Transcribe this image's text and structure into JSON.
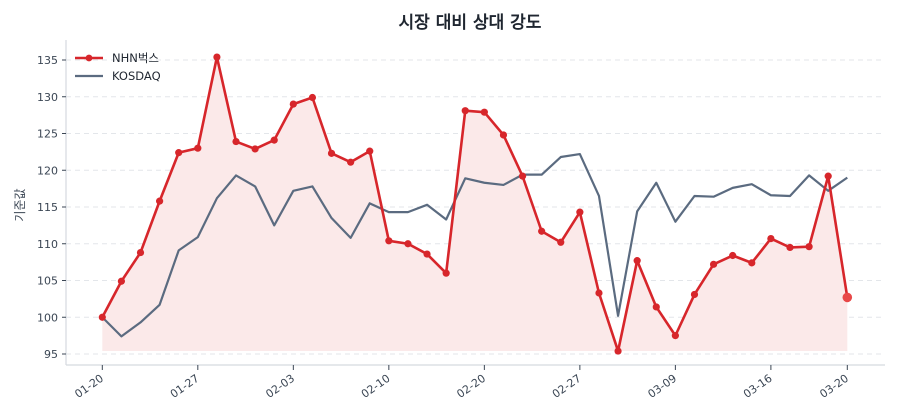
{
  "chart_data": {
    "type": "line",
    "title": "시장 대비 상대 강도",
    "xlabel": "",
    "ylabel": "기준값",
    "ylim": [
      93.5,
      137.5
    ],
    "yticks": [
      95,
      100,
      105,
      110,
      115,
      120,
      125,
      130,
      135
    ],
    "x": [
      "01-20",
      "01-21",
      "01-22",
      "01-23",
      "01-24",
      "01-27",
      "01-28",
      "01-29",
      "01-30",
      "01-31",
      "02-03",
      "02-04",
      "02-05",
      "02-06",
      "02-07",
      "02-10",
      "02-11",
      "02-12",
      "02-13",
      "02-14",
      "02-20",
      "02-21",
      "02-24",
      "02-25",
      "02-26",
      "02-27",
      "02-28",
      "03-04",
      "03-05",
      "03-06",
      "03-09",
      "03-10",
      "03-11",
      "03-12",
      "03-13",
      "03-16",
      "03-17",
      "03-18",
      "03-19",
      "03-20"
    ],
    "xticks": [
      {
        "index": 0,
        "label": "01-20"
      },
      {
        "index": 5,
        "label": "01-27"
      },
      {
        "index": 10,
        "label": "02-03"
      },
      {
        "index": 15,
        "label": "02-10"
      },
      {
        "index": 20,
        "label": "02-20"
      },
      {
        "index": 25,
        "label": "02-27"
      },
      {
        "index": 30,
        "label": "03-09"
      },
      {
        "index": 35,
        "label": "03-16"
      },
      {
        "index": 39,
        "label": "03-20"
      }
    ],
    "grid": "y-dashed",
    "legend_position": "upper-left",
    "series": [
      {
        "name": "NHN벅스",
        "color": "#d7262b",
        "marker": "circle",
        "fill": true,
        "fill_color": "#fbe9e9",
        "values": [
          100.0,
          104.9,
          108.8,
          115.8,
          122.4,
          123.0,
          135.4,
          123.9,
          122.9,
          124.1,
          129.0,
          129.9,
          122.3,
          121.1,
          122.6,
          110.4,
          110.0,
          108.6,
          106.0,
          128.1,
          127.9,
          124.8,
          119.2,
          111.7,
          110.2,
          114.3,
          103.3,
          95.4,
          107.7,
          101.4,
          97.5,
          103.1,
          107.2,
          108.4,
          107.4,
          110.7,
          109.5,
          109.6,
          119.2,
          102.7
        ]
      },
      {
        "name": "KOSDAQ",
        "color": "#5b6b80",
        "marker": "none",
        "fill": false,
        "values": [
          100.0,
          97.4,
          99.3,
          101.7,
          109.1,
          110.9,
          116.2,
          119.3,
          117.8,
          112.5,
          117.2,
          117.8,
          113.5,
          110.8,
          115.5,
          114.3,
          114.3,
          115.3,
          113.3,
          118.9,
          118.3,
          118.0,
          119.4,
          119.4,
          121.8,
          122.2,
          116.5,
          100.2,
          114.4,
          118.3,
          113.0,
          116.5,
          116.4,
          117.6,
          118.1,
          116.6,
          116.5,
          119.3,
          117.2,
          119.0
        ]
      }
    ],
    "highlight_last_point": {
      "series": "NHN벅스",
      "color": "#e84848",
      "value": 102.7
    }
  }
}
